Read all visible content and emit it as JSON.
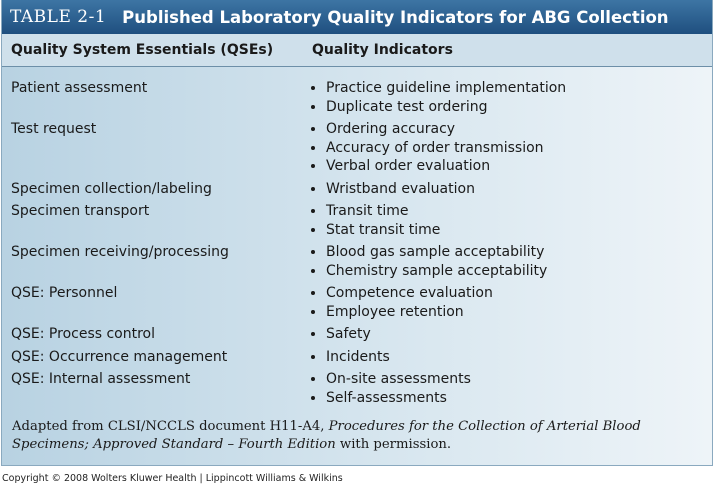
{
  "header": {
    "label": "TABLE 2-1",
    "title": "Published Laboratory Quality Indicators for ABG Collection"
  },
  "table": {
    "columns": [
      "Quality System Essentials (QSEs)",
      "Quality Indicators"
    ],
    "rows": [
      {
        "qse": "Patient assessment",
        "indicators": [
          "Practice guideline implementation",
          "Duplicate test ordering"
        ]
      },
      {
        "qse": "Test request",
        "indicators": [
          "Ordering accuracy",
          "Accuracy of order transmission",
          "Verbal order evaluation"
        ]
      },
      {
        "qse": "Specimen collection/labeling",
        "indicators": [
          "Wristband evaluation"
        ]
      },
      {
        "qse": "Specimen transport",
        "indicators": [
          "Transit time",
          "Stat transit time"
        ]
      },
      {
        "qse": "Specimen receiving/processing",
        "indicators": [
          "Blood gas sample acceptability",
          "Chemistry sample acceptability"
        ]
      },
      {
        "qse": "QSE: Personnel",
        "indicators": [
          "Competence evaluation",
          "Employee retention"
        ]
      },
      {
        "qse": "QSE: Process control",
        "indicators": [
          "Safety"
        ]
      },
      {
        "qse": "QSE: Occurrence management",
        "indicators": [
          "Incidents"
        ]
      },
      {
        "qse": "QSE: Internal assessment",
        "indicators": [
          "On-site assessments",
          "Self-assessments"
        ]
      }
    ]
  },
  "footnote": {
    "prefix": "Adapted from CLSI/NCCLS document H11-A4, ",
    "italic": "Procedures for the Collection of Arterial Blood Specimens; Approved Standard – Fourth Edition",
    "suffix": " with permission."
  },
  "copyright": "Copyright © 2008 Wolters Kluwer Health | Lippincott Williams & Wilkins"
}
